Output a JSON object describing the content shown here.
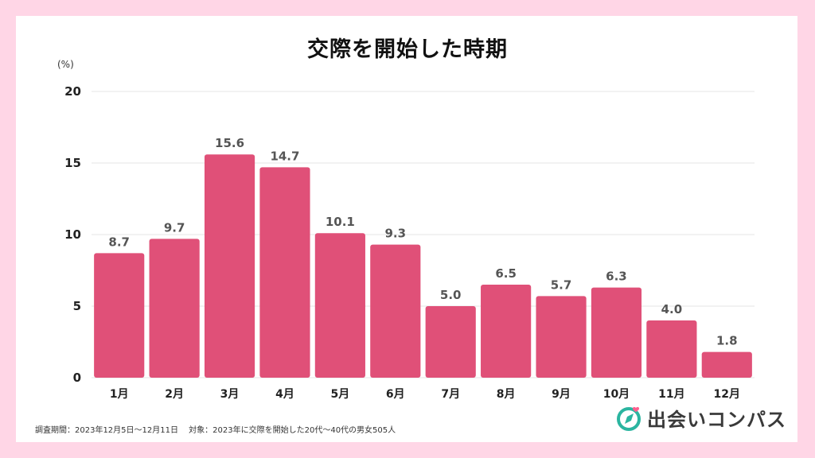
{
  "chart_data": {
    "type": "bar",
    "title": "交際を開始した時期",
    "unit_label": "(%)",
    "categories": [
      "1月",
      "2月",
      "3月",
      "4月",
      "5月",
      "6月",
      "7月",
      "8月",
      "9月",
      "10月",
      "11月",
      "12月"
    ],
    "values": [
      8.7,
      9.7,
      15.6,
      14.7,
      10.1,
      9.3,
      5.0,
      6.5,
      5.7,
      6.3,
      4.0,
      1.8
    ],
    "value_labels": [
      "8.7",
      "9.7",
      "15.6",
      "14.7",
      "10.1",
      "9.3",
      "5.0",
      "6.5",
      "5.7",
      "6.3",
      "4.0",
      "1.8"
    ],
    "ylim": [
      0,
      20
    ],
    "yticks": [
      "0",
      "5",
      "10",
      "15",
      "20"
    ],
    "grid": true,
    "legend": "none"
  },
  "colors": {
    "bar": "#e05078",
    "background": "#ffd6e6",
    "grid": "#e6e6e6",
    "brand_accent": "#2bb5a0",
    "brand_heart": "#ff5f8e"
  },
  "footer_note": "調査期間：2023年12月5日〜12月11日　 対象：2023年に交際を開始した20代〜40代の男女505人",
  "brand": {
    "name": "出会いコンパス",
    "icon": "compass-icon"
  }
}
